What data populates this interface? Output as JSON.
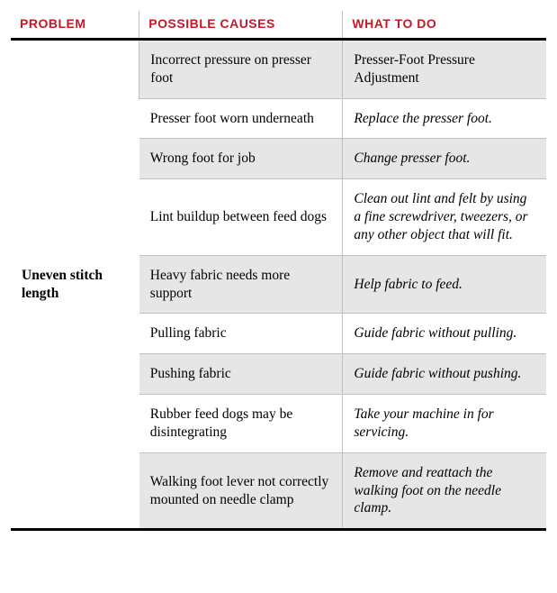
{
  "headers": {
    "problem": "Problem",
    "causes": "Possible Causes",
    "action": "What to Do"
  },
  "colors": {
    "header_text": "#c4182b",
    "rule_heavy": "#000000",
    "rule_light": "#c0c0c0",
    "shade": "#e6e6e6",
    "background": "#ffffff"
  },
  "typography": {
    "body_font": "Georgia, serif",
    "header_font": "Arial, sans-serif",
    "body_size_pt": 12,
    "header_size_pt": 11
  },
  "table": {
    "type": "table",
    "column_widths_pct": [
      24,
      38,
      38
    ],
    "problem": "Uneven stitch length",
    "rows": [
      {
        "cause": "Incorrect pressure on presser foot",
        "action": "Presser-Foot Pressure Adjustment",
        "action_italic": false,
        "shaded": true
      },
      {
        "cause": "Presser foot worn underneath",
        "action": "Replace the presser foot.",
        "action_italic": true,
        "shaded": false
      },
      {
        "cause": "Wrong foot for job",
        "action": "Change presser foot.",
        "action_italic": true,
        "shaded": true
      },
      {
        "cause": "Lint buildup between feed dogs",
        "action": "Clean out lint and felt by using a fine screwdriver, tweezers, or any other object that will fit.",
        "action_italic": true,
        "shaded": false
      },
      {
        "cause": "Heavy fabric needs more support",
        "action": "Help fabric to feed.",
        "action_italic": true,
        "shaded": true
      },
      {
        "cause": "Pulling fabric",
        "action": "Guide fabric without pulling.",
        "action_italic": true,
        "shaded": false
      },
      {
        "cause": "Pushing fabric",
        "action": "Guide fabric without pushing.",
        "action_italic": true,
        "shaded": true
      },
      {
        "cause": "Rubber feed dogs may be disintegrating",
        "action": "Take your machine in for servicing.",
        "action_italic": true,
        "shaded": false
      },
      {
        "cause": "Walking foot lever not correctly mounted on needle clamp",
        "action": "Remove and reattach the walking foot on the needle clamp.",
        "action_italic": true,
        "shaded": true
      }
    ]
  }
}
